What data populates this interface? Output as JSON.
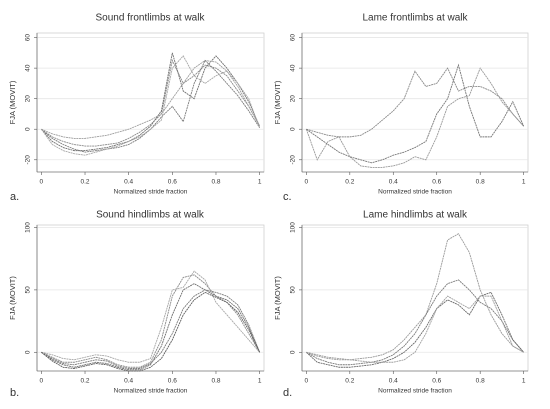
{
  "chart_data": [
    {
      "type": "line",
      "title": "Sound frontlimbs at walk",
      "panel_label": "a.",
      "x_label": "Normalized stride fraction",
      "y_label": "FJA (MOVIT)",
      "x": [
        0,
        0.05,
        0.1,
        0.15,
        0.2,
        0.25,
        0.3,
        0.35,
        0.4,
        0.45,
        0.5,
        0.55,
        0.6,
        0.65,
        0.7,
        0.75,
        0.8,
        0.85,
        0.9,
        0.95,
        1
      ],
      "xlim": [
        -0.02,
        1.02
      ],
      "xticks": [
        0,
        0.2,
        0.4,
        0.6,
        0.8,
        1
      ],
      "ylim": [
        -28,
        63
      ],
      "yticks": [
        -20,
        0,
        20,
        40,
        60
      ],
      "grid": true,
      "series": [
        {
          "color": "#8a8a8a",
          "values": [
            0,
            -5,
            -8,
            -10,
            -11,
            -11,
            -10,
            -9,
            -6,
            -2,
            3,
            10,
            45,
            30,
            35,
            42,
            40,
            35,
            25,
            15,
            2
          ]
        },
        {
          "color": "#6f6f6f",
          "values": [
            0,
            -8,
            -12,
            -14,
            -14,
            -13,
            -12,
            -10,
            -8,
            -4,
            2,
            12,
            50,
            25,
            20,
            40,
            48,
            40,
            30,
            18,
            2
          ]
        },
        {
          "color": "#9e9e9e",
          "values": [
            0,
            -3,
            -5,
            -6,
            -6,
            -5,
            -4,
            -2,
            0,
            3,
            6,
            10,
            20,
            30,
            40,
            45,
            44,
            38,
            28,
            15,
            2
          ]
        },
        {
          "color": "#7c7c7c",
          "values": [
            0,
            -6,
            -10,
            -13,
            -15,
            -14,
            -13,
            -12,
            -10,
            -6,
            0,
            8,
            15,
            5,
            30,
            45,
            38,
            30,
            22,
            12,
            1
          ]
        },
        {
          "color": "#a8a8a8",
          "values": [
            0,
            -10,
            -14,
            -16,
            -17,
            -15,
            -13,
            -11,
            -8,
            -5,
            0,
            6,
            40,
            48,
            35,
            30,
            35,
            38,
            30,
            20,
            1
          ]
        }
      ]
    },
    {
      "type": "line",
      "title": "Lame frontlimbs at walk",
      "panel_label": "c.",
      "x_label": "Normalized stride fraction",
      "y_label": "FJA (MOVIT)",
      "x": [
        0,
        0.05,
        0.1,
        0.15,
        0.2,
        0.25,
        0.3,
        0.35,
        0.4,
        0.45,
        0.5,
        0.55,
        0.6,
        0.65,
        0.7,
        0.75,
        0.8,
        0.85,
        0.9,
        0.95,
        1
      ],
      "xlim": [
        -0.02,
        1.02
      ],
      "xticks": [
        0,
        0.2,
        0.4,
        0.6,
        0.8,
        1
      ],
      "ylim": [
        -28,
        63
      ],
      "yticks": [
        -20,
        0,
        20,
        40,
        60
      ],
      "grid": true,
      "series": [
        {
          "color": "#8a8a8a",
          "values": [
            0,
            -2,
            -4,
            -5,
            -5,
            -4,
            0,
            6,
            12,
            20,
            38,
            28,
            30,
            40,
            25,
            28,
            28,
            25,
            20,
            10,
            2
          ]
        },
        {
          "color": "#9a9a9a",
          "values": [
            0,
            -20,
            -8,
            -5,
            -18,
            -24,
            -25,
            -25,
            -24,
            -22,
            -18,
            -20,
            -5,
            15,
            20,
            22,
            40,
            30,
            18,
            10,
            2
          ]
        },
        {
          "color": "#777777",
          "values": [
            0,
            -5,
            -10,
            -15,
            -18,
            -20,
            -22,
            -20,
            -17,
            -15,
            -12,
            -8,
            10,
            20,
            42,
            15,
            -5,
            -5,
            5,
            18,
            2
          ]
        }
      ]
    },
    {
      "type": "line",
      "title": "Sound hindlimbs at walk",
      "panel_label": "b.",
      "x_label": "Normalized stride fraction",
      "y_label": "FJA (MOVIT)",
      "x": [
        0,
        0.05,
        0.1,
        0.15,
        0.2,
        0.25,
        0.3,
        0.35,
        0.4,
        0.45,
        0.5,
        0.55,
        0.6,
        0.65,
        0.7,
        0.75,
        0.8,
        0.85,
        0.9,
        0.95,
        1
      ],
      "xlim": [
        -0.02,
        1.02
      ],
      "xticks": [
        0,
        0.2,
        0.4,
        0.6,
        0.8,
        1
      ],
      "ylim": [
        -15,
        102
      ],
      "yticks": [
        0,
        50,
        100
      ],
      "grid": true,
      "series": [
        {
          "color": "#8a8a8a",
          "values": [
            0,
            -4,
            -8,
            -8,
            -6,
            -4,
            -6,
            -10,
            -12,
            -12,
            -8,
            10,
            45,
            60,
            62,
            55,
            45,
            40,
            30,
            15,
            0
          ]
        },
        {
          "color": "#6f6f6f",
          "values": [
            0,
            -6,
            -10,
            -12,
            -10,
            -8,
            -9,
            -12,
            -14,
            -14,
            -10,
            5,
            30,
            50,
            55,
            50,
            45,
            42,
            35,
            20,
            0
          ]
        },
        {
          "color": "#a8a8a8",
          "values": [
            0,
            -2,
            -5,
            -6,
            -4,
            -2,
            -3,
            -6,
            -8,
            -8,
            -5,
            20,
            50,
            52,
            65,
            58,
            40,
            30,
            20,
            10,
            0
          ]
        },
        {
          "color": "#7c7c7c",
          "values": [
            0,
            -5,
            -9,
            -10,
            -8,
            -6,
            -7,
            -11,
            -13,
            -13,
            -9,
            0,
            15,
            35,
            45,
            50,
            48,
            45,
            38,
            22,
            0
          ]
        },
        {
          "color": "#5e5e5e",
          "values": [
            0,
            -7,
            -12,
            -13,
            -11,
            -9,
            -10,
            -13,
            -15,
            -15,
            -12,
            -5,
            10,
            30,
            42,
            48,
            44,
            40,
            32,
            18,
            0
          ]
        }
      ]
    },
    {
      "type": "line",
      "title": "Lame hindlimbs at walk",
      "panel_label": "d.",
      "x_label": "Normalized stride fraction",
      "y_label": "FJA (MOVIT)",
      "x": [
        0,
        0.05,
        0.1,
        0.15,
        0.2,
        0.25,
        0.3,
        0.35,
        0.4,
        0.45,
        0.5,
        0.55,
        0.6,
        0.65,
        0.7,
        0.75,
        0.8,
        0.85,
        0.9,
        0.95,
        1
      ],
      "xlim": [
        -0.02,
        1.02
      ],
      "xticks": [
        0,
        0.2,
        0.4,
        0.6,
        0.8,
        1
      ],
      "ylim": [
        -15,
        102
      ],
      "yticks": [
        0,
        50,
        100
      ],
      "grid": true,
      "series": [
        {
          "color": "#9a9a9a",
          "values": [
            0,
            -3,
            -5,
            -6,
            -6,
            -5,
            -4,
            -2,
            2,
            10,
            20,
            30,
            55,
            90,
            95,
            80,
            50,
            30,
            15,
            5,
            0
          ]
        },
        {
          "color": "#7c7c7c",
          "values": [
            0,
            -5,
            -8,
            -10,
            -10,
            -9,
            -8,
            -6,
            -2,
            5,
            15,
            30,
            45,
            55,
            58,
            50,
            40,
            35,
            25,
            10,
            0
          ]
        },
        {
          "color": "#6a6a6a",
          "values": [
            0,
            -8,
            -10,
            -12,
            -12,
            -11,
            -10,
            -8,
            -5,
            0,
            8,
            20,
            35,
            42,
            38,
            30,
            45,
            48,
            30,
            10,
            0
          ]
        },
        {
          "color": "#a0a0a0",
          "values": [
            0,
            -2,
            -4,
            -5,
            -6,
            -7,
            -8,
            -8,
            -8,
            -6,
            0,
            15,
            35,
            45,
            40,
            35,
            45,
            45,
            25,
            5,
            0
          ]
        }
      ]
    }
  ]
}
